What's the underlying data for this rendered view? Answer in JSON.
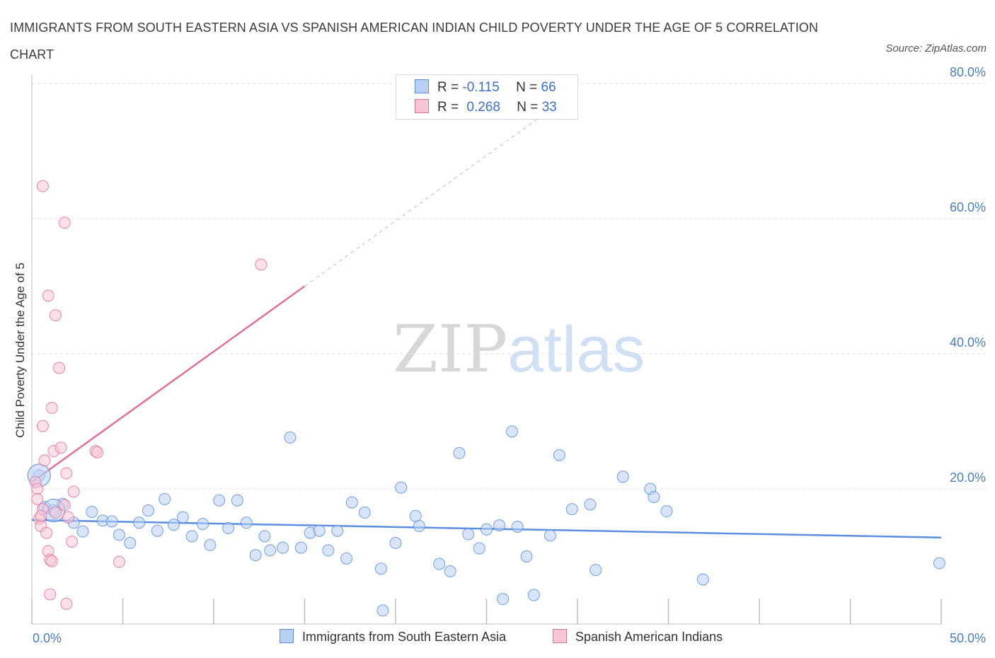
{
  "title": "IMMIGRANTS FROM SOUTH EASTERN ASIA VS SPANISH AMERICAN INDIAN CHILD POVERTY UNDER THE AGE OF 5 CORRELATION CHART",
  "source": "Source: ZipAtlas.com",
  "watermark": {
    "zip": "ZIP",
    "atlas": "atlas"
  },
  "legend": {
    "r_label": "R =",
    "n_label": "N =",
    "series": [
      {
        "r": "-0.115",
        "n": "66"
      },
      {
        "r": "0.268",
        "n": "33"
      }
    ]
  },
  "chart_data": {
    "type": "scatter",
    "xlabel": "",
    "ylabel": "Child Poverty Under the Age of 5",
    "xlim": [
      0,
      50
    ],
    "ylim": [
      0,
      80
    ],
    "x_tick_labels": [
      "0.0%",
      "50.0%"
    ],
    "y_ticks": [
      20,
      40,
      60,
      80
    ],
    "y_tick_labels": [
      "20.0%",
      "40.0%",
      "60.0%",
      "80.0%"
    ],
    "grid": true,
    "legend_position": "top-center",
    "colors": {
      "blue": "#5b8ee0",
      "blue_fill": "#b8d0f3",
      "pink": "#e0729a",
      "pink_fill": "#f7c6d6"
    },
    "series": [
      {
        "name": "Immigrants from South Eastern Asia",
        "color": "#5b8ee0",
        "trend": {
          "x": [
            0,
            50
          ],
          "y": [
            15.4,
            12.8
          ],
          "solid_to": 50
        },
        "points": [
          [
            0.4,
            22.0
          ],
          [
            0.7,
            17.3
          ],
          [
            1.2,
            16.8
          ],
          [
            1.7,
            17.8
          ],
          [
            2.3,
            15.0
          ],
          [
            2.8,
            13.7
          ],
          [
            3.3,
            16.6
          ],
          [
            3.9,
            15.3
          ],
          [
            4.4,
            15.2
          ],
          [
            4.8,
            13.2
          ],
          [
            5.4,
            12.0
          ],
          [
            5.9,
            15.0
          ],
          [
            6.4,
            16.8
          ],
          [
            6.9,
            13.8
          ],
          [
            7.3,
            18.5
          ],
          [
            7.8,
            14.7
          ],
          [
            8.3,
            15.8
          ],
          [
            8.8,
            13.0
          ],
          [
            9.4,
            14.8
          ],
          [
            9.8,
            11.7
          ],
          [
            10.3,
            18.3
          ],
          [
            10.8,
            14.2
          ],
          [
            11.3,
            18.3
          ],
          [
            11.8,
            15.0
          ],
          [
            12.3,
            10.2
          ],
          [
            12.8,
            13.0
          ],
          [
            13.1,
            10.9
          ],
          [
            13.8,
            11.3
          ],
          [
            14.2,
            27.6
          ],
          [
            14.8,
            11.3
          ],
          [
            15.3,
            13.5
          ],
          [
            15.8,
            13.8
          ],
          [
            16.3,
            10.9
          ],
          [
            16.8,
            13.8
          ],
          [
            17.3,
            9.7
          ],
          [
            17.6,
            18.0
          ],
          [
            18.3,
            16.5
          ],
          [
            19.2,
            8.2
          ],
          [
            19.3,
            2.0
          ],
          [
            20.0,
            12.0
          ],
          [
            20.3,
            20.2
          ],
          [
            21.1,
            16.0
          ],
          [
            21.3,
            14.5
          ],
          [
            22.4,
            8.9
          ],
          [
            23.0,
            7.8
          ],
          [
            23.5,
            25.3
          ],
          [
            24.0,
            13.3
          ],
          [
            24.6,
            11.2
          ],
          [
            25.0,
            14.0
          ],
          [
            25.7,
            14.6
          ],
          [
            25.9,
            3.7
          ],
          [
            26.4,
            28.5
          ],
          [
            26.7,
            14.4
          ],
          [
            27.2,
            10.0
          ],
          [
            27.6,
            4.3
          ],
          [
            28.5,
            13.1
          ],
          [
            29.0,
            25.0
          ],
          [
            29.7,
            17.0
          ],
          [
            30.7,
            17.7
          ],
          [
            31.0,
            8.0
          ],
          [
            32.5,
            21.8
          ],
          [
            34.0,
            20.0
          ],
          [
            34.2,
            18.8
          ],
          [
            34.9,
            16.7
          ],
          [
            36.9,
            6.6
          ],
          [
            49.9,
            9.0
          ]
        ],
        "big_points": [
          [
            0.4,
            22.0
          ],
          [
            1.2,
            16.8
          ]
        ]
      },
      {
        "name": "Spanish American Indians",
        "color": "#e0729a",
        "trend": {
          "x": [
            0,
            30
          ],
          "y": [
            21.0,
            79.0
          ],
          "solid_to": 15
        },
        "points": [
          [
            0.2,
            21.0
          ],
          [
            0.3,
            20.0
          ],
          [
            0.3,
            18.5
          ],
          [
            0.4,
            15.6
          ],
          [
            0.5,
            14.5
          ],
          [
            0.6,
            29.3
          ],
          [
            0.6,
            17.0
          ],
          [
            0.7,
            24.2
          ],
          [
            0.6,
            64.8
          ],
          [
            0.9,
            48.6
          ],
          [
            0.8,
            13.5
          ],
          [
            0.9,
            10.8
          ],
          [
            1.0,
            9.5
          ],
          [
            1.0,
            4.4
          ],
          [
            1.1,
            32.0
          ],
          [
            1.2,
            25.6
          ],
          [
            1.3,
            16.5
          ],
          [
            1.3,
            45.7
          ],
          [
            1.5,
            37.9
          ],
          [
            1.6,
            26.1
          ],
          [
            1.8,
            59.4
          ],
          [
            1.8,
            17.6
          ],
          [
            1.9,
            22.3
          ],
          [
            1.9,
            3.0
          ],
          [
            2.0,
            15.8
          ],
          [
            2.2,
            12.2
          ],
          [
            2.3,
            19.6
          ],
          [
            3.5,
            25.6
          ],
          [
            3.6,
            25.4
          ],
          [
            4.8,
            9.2
          ],
          [
            12.6,
            53.2
          ],
          [
            1.1,
            9.3
          ],
          [
            0.5,
            16.0
          ]
        ]
      }
    ]
  },
  "bottom_legend": [
    {
      "label": "Immigrants from South Eastern Asia"
    },
    {
      "label": "Spanish American Indians"
    }
  ]
}
